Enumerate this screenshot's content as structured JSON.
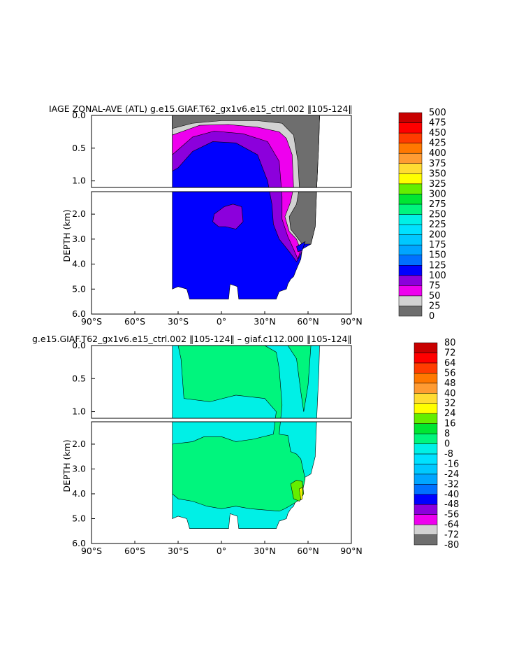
{
  "chart_data": [
    {
      "type": "heatmap",
      "title": "IAGE ZONAL-AVE (ATL) g.e15.GIAF.T62_gx1v6.e15_ctrl.002 ‖105-124‖",
      "xlabel": "",
      "ylabel": "DEPTH (km)",
      "x_ticks": [
        "90°S",
        "60°S",
        "30°S",
        "0°",
        "30°N",
        "60°N",
        "90°N"
      ],
      "y_ticks": [
        "0.0",
        "0.5",
        "1.0",
        "2.0",
        "3.0",
        "4.0",
        "5.0",
        "6.0"
      ],
      "upper_panel_depth_km": [
        0,
        1.1
      ],
      "lower_panel_depth_km": [
        1.1,
        6.0
      ],
      "xlim": [
        -90,
        90
      ],
      "colorbar_levels": [
        "0",
        "25",
        "50",
        "75",
        "100",
        "125",
        "150",
        "175",
        "200",
        "225",
        "250",
        "275",
        "300",
        "325",
        "350",
        "375",
        "400",
        "425",
        "450",
        "475",
        "500"
      ],
      "colorbar_colors": [
        "#6e6e6e",
        "#d2d2d2",
        "#ee00ee",
        "#8c00dc",
        "#0000ff",
        "#0a3cff",
        "#0070ff",
        "#00a5ff",
        "#00c8ff",
        "#00e1ff",
        "#00f0e6",
        "#00f57d",
        "#00e632",
        "#64ee00",
        "#ffff00",
        "#ffdc32",
        "#ffbe46",
        "#ff9b32",
        "#ff7800",
        "#ff3c00",
        "#ff0000",
        "#c80000"
      ],
      "field_summary": {
        "domain_lat_range": [
          -34,
          68
        ],
        "core_value_range": [
          100,
          125
        ],
        "boundary_bands": [
          "0-25",
          "25-50",
          "50-75",
          "75-100"
        ],
        "notes": "Youngest water (0-25) at surface and in northern high latitudes near 60°N; oldest (>100) fills deep basin south of 50°N."
      }
    },
    {
      "type": "heatmap",
      "title": "g.e15.GIAF.T62_gx1v6.e15_ctrl.002 ‖105-124‖ – giaf.c112.000 ‖105-124‖",
      "xlabel": "",
      "ylabel": "DEPTH (km)",
      "x_ticks": [
        "90°S",
        "60°S",
        "30°S",
        "0°",
        "30°N",
        "60°N",
        "90°N"
      ],
      "y_ticks": [
        "0.0",
        "0.5",
        "1.0",
        "2.0",
        "3.0",
        "4.0",
        "5.0",
        "6.0"
      ],
      "upper_panel_depth_km": [
        0,
        1.1
      ],
      "lower_panel_depth_km": [
        1.1,
        6.0
      ],
      "xlim": [
        -90,
        90
      ],
      "colorbar_levels": [
        "-80",
        "-72",
        "-64",
        "-56",
        "-48",
        "-40",
        "-32",
        "-24",
        "-16",
        "-8",
        "0",
        "8",
        "16",
        "24",
        "32",
        "40",
        "48",
        "56",
        "64",
        "72",
        "80"
      ],
      "colorbar_colors": [
        "#6e6e6e",
        "#d2d2d2",
        "#ee00ee",
        "#8c00dc",
        "#0000ff",
        "#0a3cff",
        "#0070ff",
        "#00a5ff",
        "#00c8ff",
        "#00e1ff",
        "#00f0e6",
        "#00f57d",
        "#00e632",
        "#64ee00",
        "#ffff00",
        "#ffdc32",
        "#ffbe46",
        "#ff9b32",
        "#ff7800",
        "#ff3c00",
        "#ff0000",
        "#c80000"
      ],
      "field_summary": {
        "domain_lat_range": [
          -34,
          68
        ],
        "dominant_bands": [
          "-8-0",
          "0-8"
        ],
        "local_maximum": "8-24 near 55°N, 4 km depth",
        "notes": "Differences mostly within ±8; positive values fill mid-depths, slightly negative near surface and abyss."
      }
    }
  ]
}
